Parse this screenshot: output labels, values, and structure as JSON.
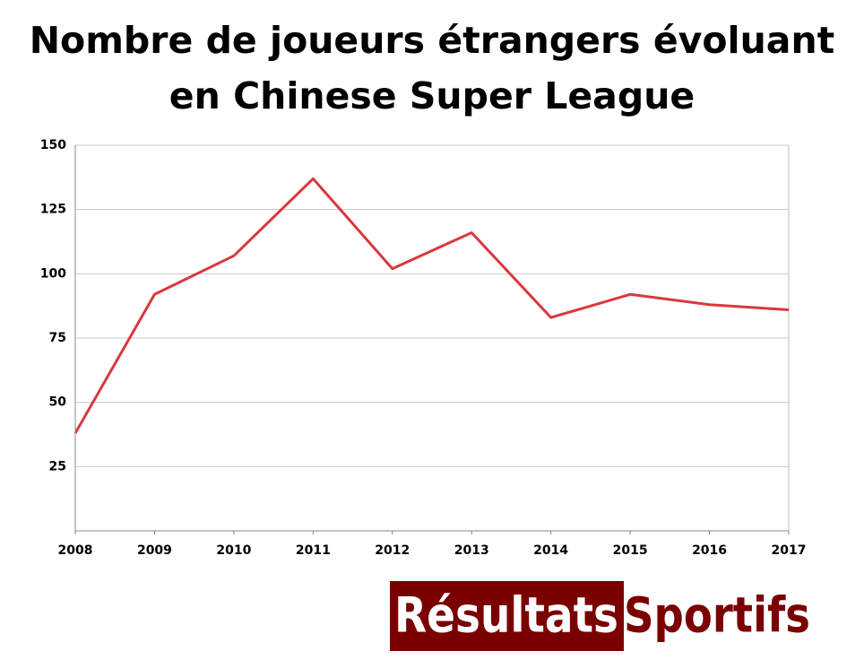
{
  "chart_data": {
    "type": "line",
    "title": "Nombre de joueurs étrangers évoluant en Chinese Super League",
    "x": [
      2008,
      2009,
      2010,
      2011,
      2012,
      2013,
      2014,
      2015,
      2016,
      2017
    ],
    "series": [
      {
        "color": "#d9383d",
        "values": [
          38,
          92,
          107,
          137,
          102,
          116,
          83,
          92,
          88,
          86
        ]
      }
    ],
    "xlim": [
      2008,
      2017
    ],
    "xticks": [
      2008,
      2009,
      2010,
      2011,
      2012,
      2013,
      2014,
      2015,
      2016,
      2017
    ],
    "ylim": [
      0,
      150
    ],
    "yticks": [
      25,
      50,
      75,
      100,
      125,
      150
    ],
    "grid": true
  },
  "logo": {
    "part1": "Résultats",
    "part2": "Sportifs"
  }
}
